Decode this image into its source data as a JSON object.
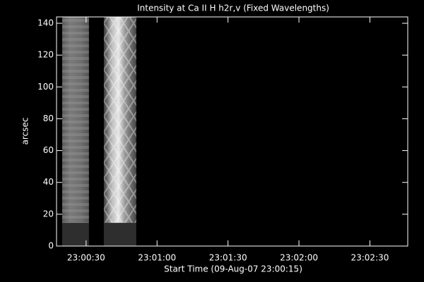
{
  "chart_data": {
    "type": "image",
    "title": "Intensity at Ca II H h2r,v (Fixed Wavelengths)",
    "x_label": "Start Time (09-Aug-07 23:00:15)",
    "y_label": "arcsec",
    "xlim": [
      2.5,
      151
    ],
    "xticks": [
      {
        "value": 15,
        "label": "23:00:30"
      },
      {
        "value": 45,
        "label": "23:01:00"
      },
      {
        "value": 75,
        "label": "23:01:30"
      },
      {
        "value": 105,
        "label": "23:02:00"
      },
      {
        "value": 135,
        "label": "23:02:30"
      }
    ],
    "ylim": [
      0,
      144
    ],
    "yticks": [
      0,
      20,
      40,
      60,
      80,
      100,
      120,
      140
    ],
    "dark_floor": 14.5,
    "image_strips": [
      {
        "xrange": [
          4.9,
          16.2
        ],
        "style": "dim"
      },
      {
        "xrange": [
          22.5,
          36.2
        ],
        "style": "bright"
      }
    ]
  }
}
